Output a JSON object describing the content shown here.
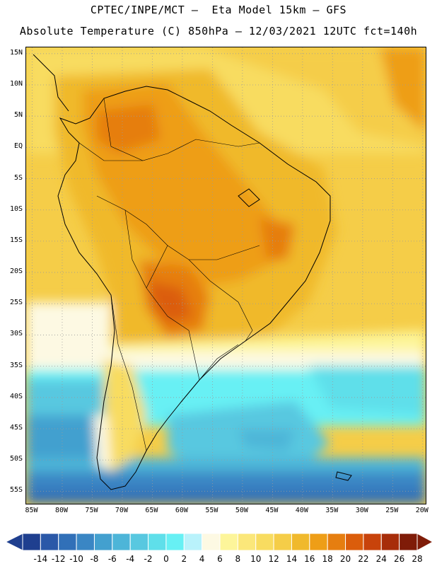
{
  "header": {
    "line1": "CPTEC/INPE/MCT —  Eta Model 15km — GFS",
    "line2": "Absolute Temperature (C) 850hPa — 12/03/2021 12UTC fct=140h"
  },
  "map": {
    "lat_labels": [
      "15N",
      "10N",
      "5N",
      "EQ",
      "5S",
      "10S",
      "15S",
      "20S",
      "25S",
      "30S",
      "35S",
      "40S",
      "45S",
      "50S",
      "55S"
    ],
    "lon_labels": [
      "85W",
      "80W",
      "75W",
      "70W",
      "65W",
      "60W",
      "55W",
      "50W",
      "45W",
      "40W",
      "35W",
      "30W",
      "25W",
      "20W"
    ],
    "extent": {
      "lon_min": -86,
      "lon_max": -19.5,
      "lat_min": -57,
      "lat_max": 16
    }
  },
  "legend": {
    "labels": [
      "-14",
      "-12",
      "-10",
      "-8",
      "-6",
      "-4",
      "-2",
      "0",
      "2",
      "4",
      "6",
      "8",
      "10",
      "12",
      "14",
      "16",
      "18",
      "20",
      "22",
      "24",
      "26",
      "28"
    ],
    "colors": [
      "#1f3f8f",
      "#2a58a8",
      "#3170b8",
      "#3a86c4",
      "#43a0cf",
      "#4db5d8",
      "#58c8e0",
      "#5fdfea",
      "#67f0f4",
      "#b9f2fb",
      "#fdf9e3",
      "#fdf59a",
      "#fbe77a",
      "#f8dc60",
      "#f5cd48",
      "#f0b92c",
      "#ee9e17",
      "#e67e10",
      "#db5d0b",
      "#c8430b",
      "#a72d0a",
      "#7f1c08"
    ],
    "value_min": -16,
    "value_max": 30
  }
}
